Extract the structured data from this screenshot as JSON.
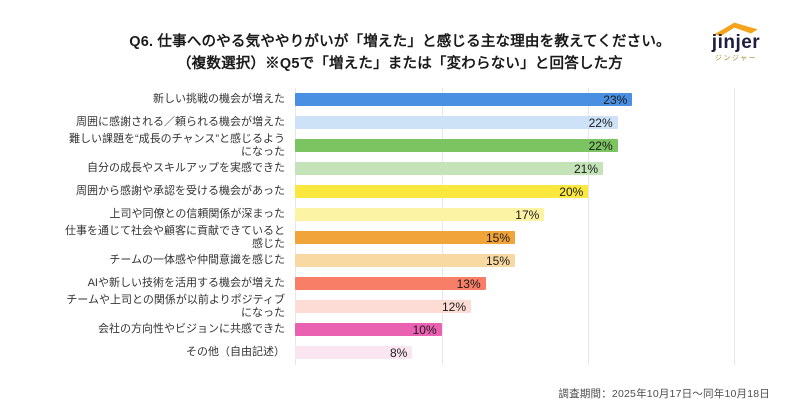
{
  "header": {
    "title_line1": "Q6. 仕事へのやる気ややりがいが「増えた」と感じる主な理由を教えてください。",
    "title_line2": "（複数選択）※Q5で「増えた」または「変わらない」と回答した方"
  },
  "logo": {
    "brand": "jinjer",
    "subtitle": "ジンジャー",
    "swoosh_color": "#f5a31d",
    "brand_color": "#1d1d3c"
  },
  "footer": {
    "survey_period": "調査期間：2025年10月17日～同年10月18日"
  },
  "chart_data": {
    "type": "bar",
    "orientation": "horizontal",
    "title": "Q6. 仕事へのやる気ややりがいが「増えた」と感じる主な理由（複数選択）",
    "value_suffix": "%",
    "xlim": [
      0,
      30
    ],
    "gridlines_at": [
      0,
      10,
      20,
      30
    ],
    "grid_color": "#e7e7e7",
    "legend": "none",
    "categories": [
      "新しい挑戦の機会が増えた",
      "周囲に感謝される／頼られる機会が増えた",
      "難しい課題を“成長のチャンス”と感じるよう\nになった",
      "自分の成長やスキルアップを実感できた",
      "周囲から感謝や承認を受ける機会があった",
      "上司や同僚との信頼関係が深まった",
      "仕事を通じて社会や顧客に貢献できていると\n感じた",
      "チームの一体感や仲間意識を感じた",
      "AIや新しい技術を活用する機会が増えた",
      "チームや上司との関係が以前よりポジティブ\nになった",
      "会社の方向性やビジョンに共感できた",
      "その他（自由記述）"
    ],
    "values": [
      23,
      22,
      22,
      21,
      20,
      17,
      15,
      15,
      13,
      12,
      10,
      8
    ],
    "bar_colors": [
      "#4a90e2",
      "#cde2f7",
      "#7cc461",
      "#c4e3b8",
      "#fbe83e",
      "#fcf3a4",
      "#f0a43a",
      "#f8d9a2",
      "#f87e68",
      "#fcdcd4",
      "#eb61b2",
      "#fae6f1"
    ]
  }
}
